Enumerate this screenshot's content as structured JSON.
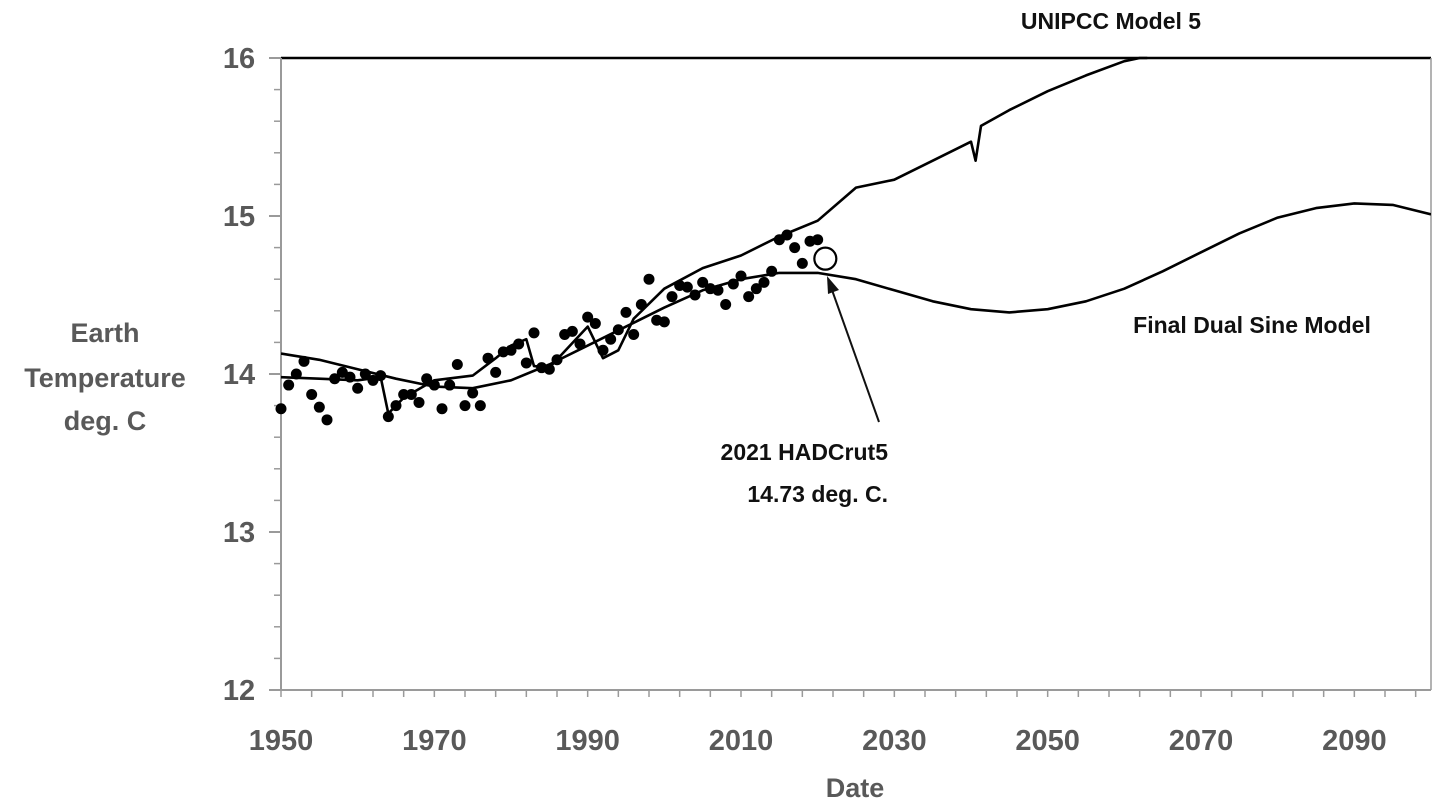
{
  "chart_data": {
    "type": "line",
    "xlabel": "Date",
    "ylabel_lines": [
      "Earth",
      "Temperature",
      "deg. C"
    ],
    "xlim": [
      1950,
      2100
    ],
    "ylim": [
      12,
      16
    ],
    "x_ticks": [
      1950,
      1970,
      1990,
      2010,
      2030,
      2050,
      2070,
      2090
    ],
    "x_tick_labels": [
      "1950",
      "1970",
      "1990",
      "2010",
      "2030",
      "2050",
      "2070",
      "2090"
    ],
    "y_ticks": [
      12,
      13,
      14,
      15,
      16
    ],
    "y_tick_labels": [
      "12",
      "13",
      "14",
      "15",
      "16"
    ],
    "grid": false,
    "series": [
      {
        "name": "UNIPCC Model 5",
        "style": "line",
        "x": [
          1950,
          1955,
          1960,
          1963,
          1964,
          1966,
          1970,
          1975,
          1978,
          1980,
          1982,
          1983,
          1985,
          1990,
          1992,
          1994,
          1996,
          2000,
          2005,
          2010,
          2015,
          2020,
          2025,
          2030,
          2035,
          2040,
          2040.6,
          2041.3,
          2045,
          2050,
          2055,
          2060,
          2062,
          2063
        ],
        "y": [
          13.98,
          13.97,
          13.96,
          13.98,
          13.75,
          13.85,
          13.96,
          13.99,
          14.1,
          14.18,
          14.22,
          14.05,
          14.04,
          14.3,
          14.1,
          14.15,
          14.35,
          14.54,
          14.67,
          14.75,
          14.87,
          14.97,
          15.18,
          15.23,
          15.35,
          15.47,
          15.35,
          15.57,
          15.67,
          15.79,
          15.89,
          15.98,
          16.0,
          16.0
        ]
      },
      {
        "name": "Final Dual Sine Model",
        "style": "line",
        "x": [
          1950,
          1955,
          1960,
          1965,
          1970,
          1975,
          1980,
          1985,
          1990,
          1995,
          2000,
          2005,
          2010,
          2015,
          2020,
          2025,
          2030,
          2035,
          2040,
          2045,
          2050,
          2055,
          2060,
          2065,
          2070,
          2075,
          2080,
          2085,
          2090,
          2095,
          2100
        ],
        "y": [
          14.13,
          14.09,
          14.03,
          13.97,
          13.92,
          13.91,
          13.96,
          14.06,
          14.18,
          14.3,
          14.42,
          14.53,
          14.6,
          14.64,
          14.64,
          14.6,
          14.53,
          14.46,
          14.41,
          14.39,
          14.41,
          14.46,
          14.54,
          14.65,
          14.77,
          14.89,
          14.99,
          15.05,
          15.08,
          15.07,
          15.01
        ]
      },
      {
        "name": "HADCrut5",
        "style": "scatter",
        "x": [
          1950,
          1951,
          1952,
          1953,
          1954,
          1955,
          1956,
          1957,
          1958,
          1959,
          1960,
          1961,
          1962,
          1963,
          1964,
          1965,
          1966,
          1967,
          1968,
          1969,
          1970,
          1971,
          1972,
          1973,
          1974,
          1975,
          1976,
          1977,
          1978,
          1979,
          1980,
          1981,
          1982,
          1983,
          1984,
          1985,
          1986,
          1987,
          1988,
          1989,
          1990,
          1991,
          1992,
          1993,
          1994,
          1995,
          1996,
          1997,
          1998,
          1999,
          2000,
          2001,
          2002,
          2003,
          2004,
          2005,
          2006,
          2007,
          2008,
          2009,
          2010,
          2011,
          2012,
          2013,
          2014,
          2015,
          2016,
          2017,
          2018,
          2019,
          2020
        ],
        "y": [
          13.78,
          13.93,
          14.0,
          14.08,
          13.87,
          13.79,
          13.71,
          13.97,
          14.01,
          13.98,
          13.91,
          14.0,
          13.96,
          13.99,
          13.73,
          13.8,
          13.87,
          13.87,
          13.82,
          13.97,
          13.93,
          13.78,
          13.93,
          14.06,
          13.8,
          13.88,
          13.8,
          14.1,
          14.01,
          14.14,
          14.15,
          14.19,
          14.07,
          14.26,
          14.04,
          14.03,
          14.09,
          14.25,
          14.27,
          14.19,
          14.36,
          14.32,
          14.15,
          14.22,
          14.28,
          14.39,
          14.25,
          14.44,
          14.6,
          14.34,
          14.33,
          14.49,
          14.56,
          14.55,
          14.5,
          14.58,
          14.54,
          14.53,
          14.44,
          14.57,
          14.62,
          14.49,
          14.54,
          14.58,
          14.65,
          14.85,
          14.88,
          14.8,
          14.7,
          14.84,
          14.85
        ]
      },
      {
        "name": "2021 HADCrut5",
        "style": "open-marker",
        "x": [
          2021
        ],
        "y": [
          14.73
        ]
      }
    ],
    "annotations": {
      "model5_label": "UNIPCC Model 5",
      "sine_label": "Final Dual Sine Model",
      "point_label_line1": "2021 HADCrut5",
      "point_label_line2": "14.73 deg. C."
    }
  }
}
